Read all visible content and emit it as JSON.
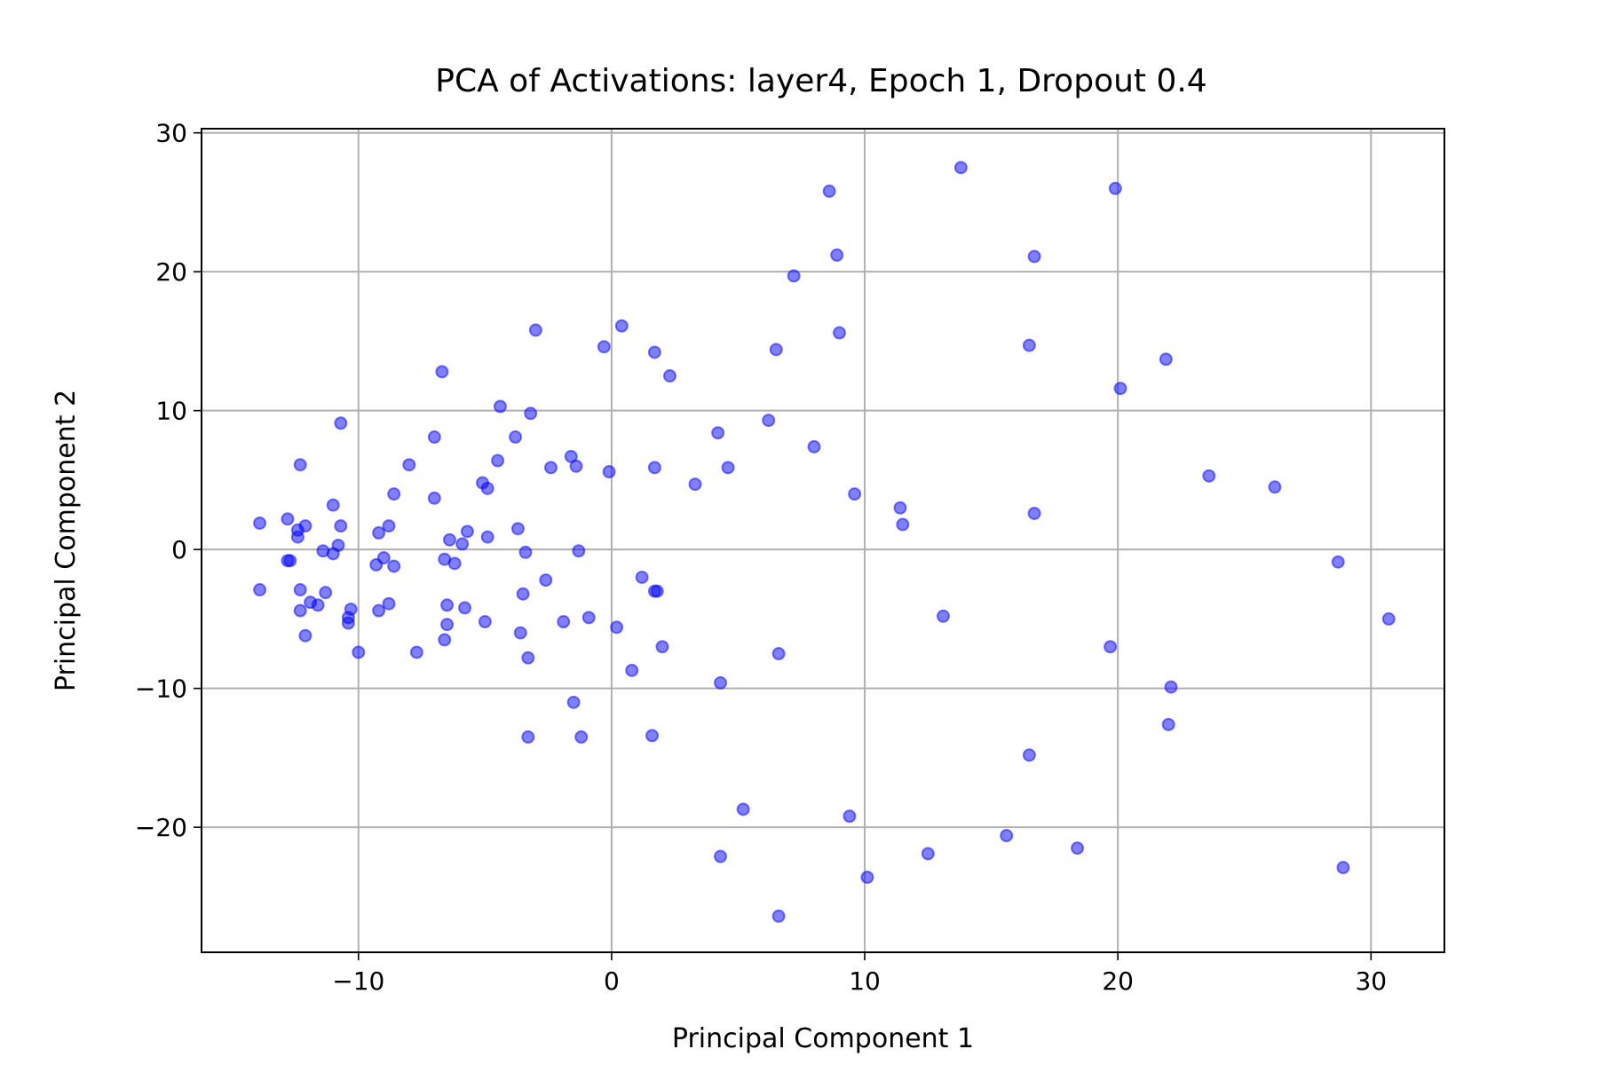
{
  "chart_data": {
    "type": "scatter",
    "title": "PCA of Activations: layer4, Epoch 1, Dropout 0.4",
    "xlabel": "Principal Component 1",
    "ylabel": "Principal Component 2",
    "xlim": [
      -16.2,
      32.9
    ],
    "ylim": [
      -29.0,
      30.3
    ],
    "xticks": [
      -10,
      0,
      10,
      20,
      30
    ],
    "yticks": [
      -20,
      -10,
      0,
      10,
      20,
      30
    ],
    "xtick_labels": [
      "−10",
      "0",
      "10",
      "20",
      "30"
    ],
    "ytick_labels": [
      "−20",
      "−10",
      "0",
      "10",
      "20",
      "30"
    ],
    "grid": true,
    "marker_color": "#0000ff",
    "marker_alpha": 0.5,
    "series": [
      {
        "x": [
          13.8,
          8.6,
          19.9,
          8.9,
          16.7,
          7.2,
          0.4,
          -3.0,
          9.0,
          16.5,
          -0.3,
          1.7,
          6.5,
          21.9,
          -6.7,
          2.3,
          20.1,
          -4.4,
          -3.2,
          -10.7,
          6.2,
          4.2,
          -7.0,
          -3.8,
          8.0,
          -1.6,
          -4.5,
          -12.3,
          -8.0,
          -2.4,
          -1.4,
          -0.1,
          1.7,
          4.6,
          -5.1,
          3.3,
          -4.9,
          23.6,
          26.2,
          -8.6,
          9.6,
          -7.0,
          -11.0,
          11.4,
          16.7,
          -12.8,
          -13.9,
          -10.7,
          -12.1,
          -8.8,
          11.5,
          -5.7,
          -12.4,
          -9.2,
          -12.4,
          -3.7,
          -6.4,
          -4.9,
          -5.9,
          -10.8,
          -11.4,
          -3.4,
          -1.3,
          -11.0,
          -6.6,
          -9.0,
          -9.3,
          -12.8,
          -12.7,
          -8.6,
          -6.2,
          28.7,
          -12.3,
          -13.9,
          1.2,
          -2.6,
          -11.3,
          1.7,
          1.8,
          -3.5,
          -11.9,
          -11.6,
          -8.8,
          -5.8,
          -6.5,
          -10.3,
          -12.3,
          -9.2,
          -10.4,
          -10.4,
          -0.9,
          -1.9,
          -5.0,
          30.7,
          0.2,
          -6.5,
          -3.6,
          -12.1,
          -6.6,
          13.1,
          2.0,
          -7.7,
          -10.0,
          6.6,
          -3.3,
          19.7,
          0.8,
          4.3,
          22.1,
          -1.5,
          -3.3,
          -1.2,
          1.6,
          22.0,
          16.5,
          5.2,
          9.4,
          15.6,
          18.4,
          12.5,
          4.3,
          28.9,
          10.1,
          6.6
        ],
        "y": [
          27.5,
          25.8,
          26.0,
          21.2,
          21.1,
          19.7,
          16.1,
          15.8,
          15.6,
          14.7,
          14.6,
          14.2,
          14.4,
          13.7,
          12.8,
          12.5,
          11.6,
          10.3,
          9.8,
          9.1,
          9.3,
          8.4,
          8.1,
          8.1,
          7.4,
          6.7,
          6.4,
          6.1,
          6.1,
          5.9,
          6.0,
          5.6,
          5.9,
          5.9,
          4.8,
          4.7,
          4.4,
          5.3,
          4.5,
          4.0,
          4.0,
          3.7,
          3.2,
          3.0,
          2.6,
          2.2,
          1.9,
          1.7,
          1.7,
          1.7,
          1.8,
          1.3,
          1.4,
          1.2,
          0.9,
          1.5,
          0.7,
          0.9,
          0.4,
          0.3,
          -0.1,
          -0.2,
          -0.1,
          -0.3,
          -0.7,
          -0.6,
          -1.1,
          -0.8,
          -0.8,
          -1.2,
          -1.0,
          -0.9,
          -2.9,
          -2.9,
          -2.0,
          -2.2,
          -3.1,
          -3.0,
          -3.0,
          -3.2,
          -3.8,
          -4.0,
          -3.9,
          -4.2,
          -4.0,
          -4.3,
          -4.4,
          -4.4,
          -4.9,
          -5.3,
          -4.9,
          -5.2,
          -5.2,
          -5.0,
          -5.6,
          -5.4,
          -6.0,
          -6.2,
          -6.5,
          -4.8,
          -7.0,
          -7.4,
          -7.4,
          -7.5,
          -7.8,
          -7.0,
          -8.7,
          -9.6,
          -9.9,
          -11.0,
          -13.5,
          -13.5,
          -13.4,
          -12.6,
          -14.8,
          -18.7,
          -19.2,
          -20.6,
          -21.5,
          -21.9,
          -22.1,
          -22.9,
          -23.6,
          -26.4
        ]
      }
    ]
  }
}
